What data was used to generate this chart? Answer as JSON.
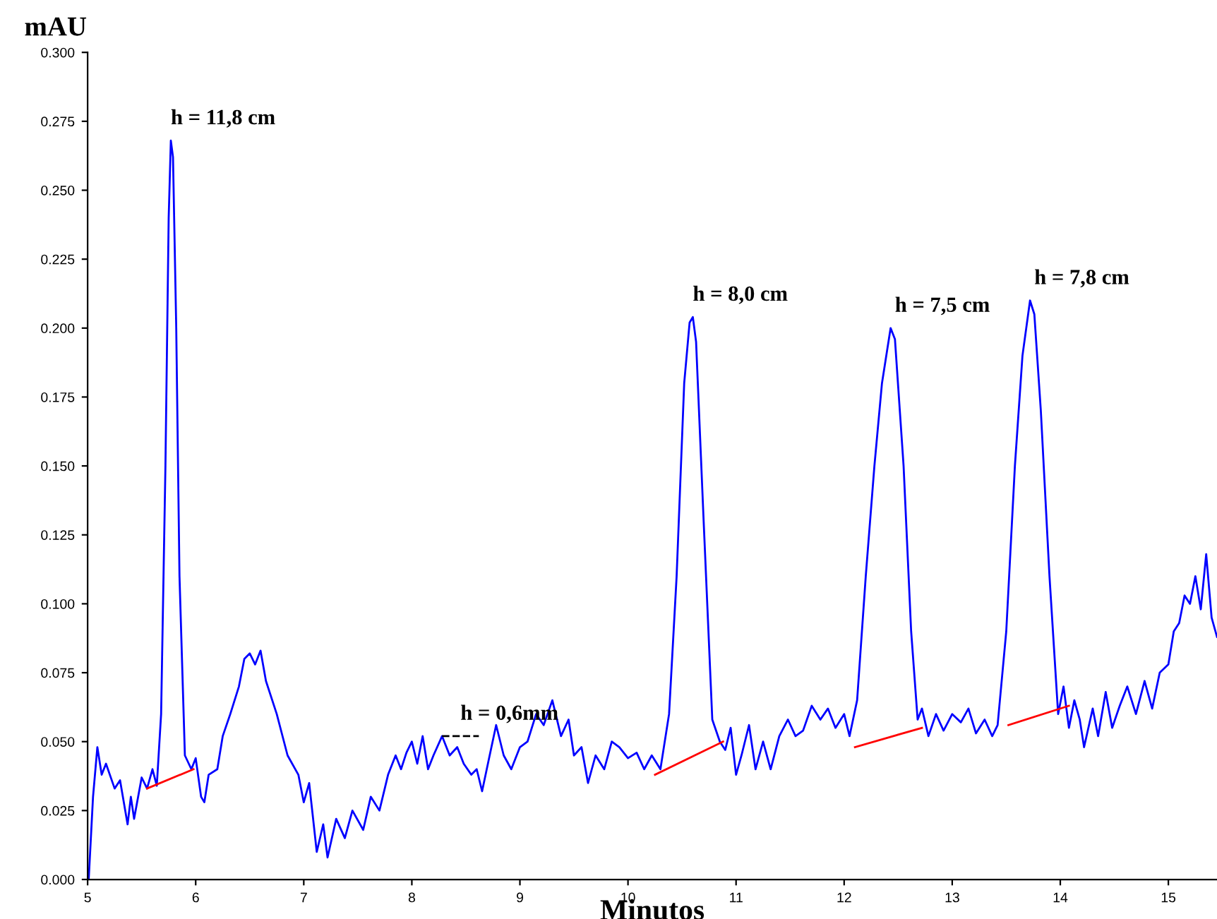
{
  "chart_data": {
    "type": "line",
    "xlabel": "Minutos",
    "ylabel": "mAU",
    "xlim": [
      5,
      15.45
    ],
    "ylim": [
      0,
      0.3
    ],
    "xticks": [
      5,
      6,
      7,
      8,
      9,
      10,
      11,
      12,
      13,
      14,
      15
    ],
    "yticks": [
      {
        "value": 0,
        "label": "0.000"
      },
      {
        "value": 0.025,
        "label": "0.025"
      },
      {
        "value": 0.05,
        "label": "0.050"
      },
      {
        "value": 0.075,
        "label": "0.075"
      },
      {
        "value": 0.1,
        "label": "0.100"
      },
      {
        "value": 0.125,
        "label": "0.125"
      },
      {
        "value": 0.15,
        "label": "0.150"
      },
      {
        "value": 0.175,
        "label": "0.175"
      },
      {
        "value": 0.2,
        "label": "0.200"
      },
      {
        "value": 0.225,
        "label": "0.225"
      },
      {
        "value": 0.25,
        "label": "0.250"
      },
      {
        "value": 0.275,
        "label": "0.275"
      },
      {
        "value": 0.3,
        "label": "0.300"
      }
    ],
    "grid": false,
    "legend": false,
    "series": [
      {
        "color": "#0000ff",
        "line_style": "solid",
        "x": [
          5.01,
          5.05,
          5.09,
          5.13,
          5.17,
          5.25,
          5.3,
          5.37,
          5.4,
          5.43,
          5.5,
          5.55,
          5.6,
          5.64,
          5.68,
          5.72,
          5.75,
          5.77,
          5.79,
          5.82,
          5.85,
          5.9,
          5.96,
          6.0,
          6.05,
          6.08,
          6.12,
          6.2,
          6.25,
          6.32,
          6.4,
          6.45,
          6.5,
          6.55,
          6.6,
          6.65,
          6.75,
          6.85,
          6.95,
          7.0,
          7.05,
          7.12,
          7.18,
          7.22,
          7.3,
          7.38,
          7.45,
          7.55,
          7.62,
          7.7,
          7.78,
          7.85,
          7.9,
          7.95,
          8.0,
          8.05,
          8.1,
          8.15,
          8.2,
          8.28,
          8.35,
          8.42,
          8.48,
          8.55,
          8.6,
          8.65,
          8.72,
          8.78,
          8.85,
          8.92,
          9.0,
          9.07,
          9.15,
          9.22,
          9.3,
          9.38,
          9.45,
          9.5,
          9.57,
          9.63,
          9.7,
          9.78,
          9.85,
          9.92,
          10.0,
          10.08,
          10.15,
          10.22,
          10.3,
          10.38,
          10.45,
          10.52,
          10.57,
          10.6,
          10.63,
          10.7,
          10.78,
          10.85,
          10.9,
          10.95,
          11.0,
          11.05,
          11.12,
          11.18,
          11.25,
          11.32,
          11.4,
          11.48,
          11.55,
          11.62,
          11.7,
          11.78,
          11.85,
          11.92,
          12.0,
          12.05,
          12.12,
          12.2,
          12.28,
          12.35,
          12.43,
          12.47,
          12.55,
          12.62,
          12.68,
          12.72,
          12.78,
          12.85,
          12.92,
          13.0,
          13.08,
          13.15,
          13.22,
          13.3,
          13.37,
          13.42,
          13.5,
          13.58,
          13.65,
          13.72,
          13.76,
          13.82,
          13.9,
          13.98,
          14.03,
          14.08,
          14.13,
          14.18,
          14.22,
          14.3,
          14.35,
          14.42,
          14.48,
          14.55,
          14.62,
          14.7,
          14.78,
          14.85,
          14.92,
          15.0,
          15.05,
          15.1,
          15.15,
          15.2,
          15.25,
          15.3,
          15.35,
          15.4,
          15.45
        ],
        "values": [
          0.0,
          0.03,
          0.048,
          0.038,
          0.042,
          0.033,
          0.036,
          0.02,
          0.03,
          0.022,
          0.037,
          0.033,
          0.04,
          0.034,
          0.06,
          0.15,
          0.24,
          0.268,
          0.262,
          0.2,
          0.11,
          0.045,
          0.04,
          0.044,
          0.03,
          0.028,
          0.038,
          0.04,
          0.052,
          0.06,
          0.07,
          0.08,
          0.082,
          0.078,
          0.083,
          0.072,
          0.06,
          0.045,
          0.038,
          0.028,
          0.035,
          0.01,
          0.02,
          0.008,
          0.022,
          0.015,
          0.025,
          0.018,
          0.03,
          0.025,
          0.038,
          0.045,
          0.04,
          0.046,
          0.05,
          0.042,
          0.052,
          0.04,
          0.045,
          0.052,
          0.045,
          0.048,
          0.042,
          0.038,
          0.04,
          0.032,
          0.045,
          0.056,
          0.045,
          0.04,
          0.048,
          0.05,
          0.06,
          0.056,
          0.065,
          0.052,
          0.058,
          0.045,
          0.048,
          0.035,
          0.045,
          0.04,
          0.05,
          0.048,
          0.044,
          0.046,
          0.04,
          0.045,
          0.04,
          0.06,
          0.11,
          0.18,
          0.202,
          0.204,
          0.195,
          0.13,
          0.058,
          0.05,
          0.047,
          0.055,
          0.038,
          0.045,
          0.056,
          0.04,
          0.05,
          0.04,
          0.052,
          0.058,
          0.052,
          0.054,
          0.063,
          0.058,
          0.062,
          0.055,
          0.06,
          0.052,
          0.065,
          0.11,
          0.15,
          0.18,
          0.2,
          0.196,
          0.15,
          0.09,
          0.058,
          0.062,
          0.052,
          0.06,
          0.054,
          0.06,
          0.057,
          0.062,
          0.053,
          0.058,
          0.052,
          0.056,
          0.09,
          0.15,
          0.19,
          0.21,
          0.205,
          0.17,
          0.11,
          0.06,
          0.07,
          0.055,
          0.065,
          0.058,
          0.048,
          0.062,
          0.052,
          0.068,
          0.055,
          0.063,
          0.07,
          0.06,
          0.072,
          0.062,
          0.075,
          0.078,
          0.09,
          0.093,
          0.103,
          0.1,
          0.11,
          0.098,
          0.118,
          0.095,
          0.088
        ]
      },
      {
        "color": "#ff0000",
        "line_style": "solid",
        "x": [
          5.55,
          5.98
        ],
        "values": [
          0.033,
          0.04
        ]
      },
      {
        "color": "#ff0000",
        "line_style": "solid",
        "x": [
          10.25,
          10.88
        ],
        "values": [
          0.038,
          0.05
        ]
      },
      {
        "color": "#ff0000",
        "line_style": "solid",
        "x": [
          12.1,
          12.72
        ],
        "values": [
          0.048,
          0.055
        ]
      },
      {
        "color": "#ff0000",
        "line_style": "solid",
        "x": [
          13.52,
          14.08
        ],
        "values": [
          0.056,
          0.063
        ]
      },
      {
        "color": "#000000",
        "line_style": "dashed",
        "x": [
          8.28,
          8.62
        ],
        "values": [
          0.052,
          0.052
        ]
      }
    ],
    "annotations": [
      {
        "text": "h = 11,8 cm",
        "x": 5.77,
        "y": 0.268
      },
      {
        "text": "h = 0,6mm",
        "x": 8.45,
        "y": 0.052
      },
      {
        "text": "h = 8,0 cm",
        "x": 10.6,
        "y": 0.204
      },
      {
        "text": "h = 7,5 cm",
        "x": 12.47,
        "y": 0.2
      },
      {
        "text": "h = 7,8 cm",
        "x": 13.76,
        "y": 0.21
      }
    ]
  }
}
